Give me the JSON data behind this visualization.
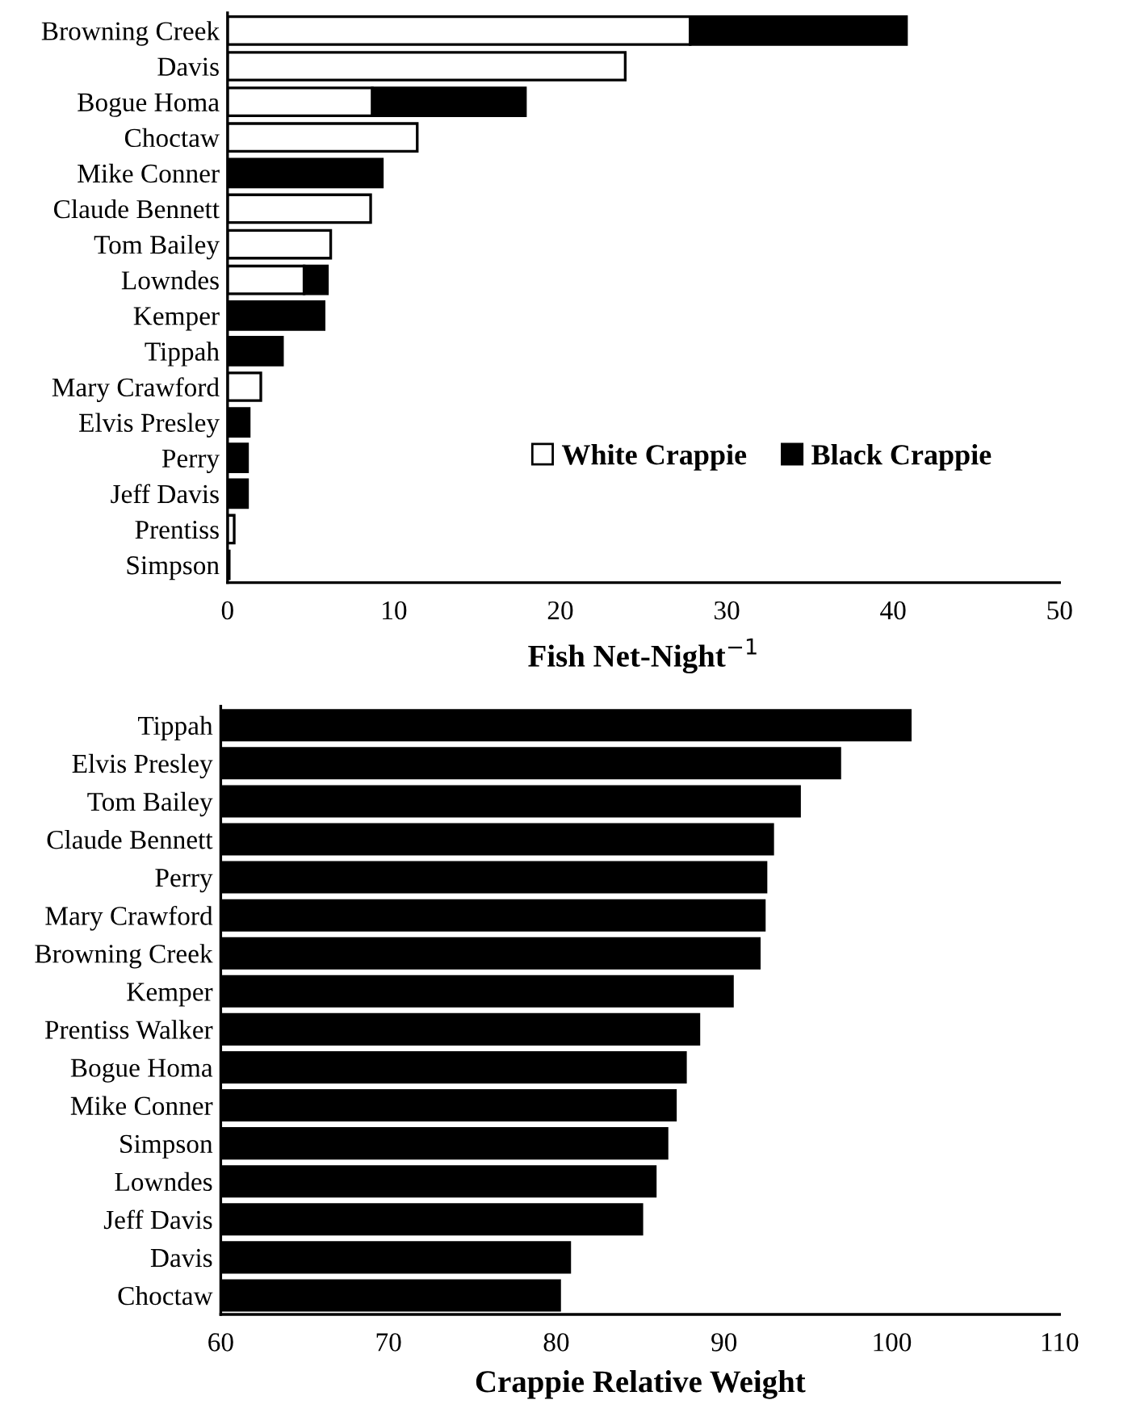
{
  "chart_data": [
    {
      "type": "bar",
      "orientation": "horizontal",
      "stacked": true,
      "xlabel": "Fish Net-Night$^{−1}$",
      "categories": [
        "Browning Creek",
        "Davis",
        "Bogue Homa",
        "Choctaw",
        "Mike Conner",
        "Claude Bennett",
        "Tom Bailey",
        "Lowndes",
        "Kemper",
        "Tippah",
        "Mary Crawford",
        "Elvis Presley",
        "Perry",
        "Jeff Davis",
        "Prentiss",
        "Simpson"
      ],
      "series": [
        {
          "name": "White Crappie",
          "color": "#ffffff",
          "values": [
            27.8,
            23.9,
            8.7,
            11.4,
            null,
            8.6,
            6.2,
            4.6,
            null,
            null,
            2.0,
            null,
            null,
            null,
            0.4,
            0.1
          ]
        },
        {
          "name": "Black Crappie",
          "color": "#000000",
          "values": [
            13.0,
            null,
            9.2,
            null,
            9.3,
            null,
            null,
            1.4,
            5.8,
            3.3,
            null,
            1.3,
            1.2,
            1.2,
            null,
            null
          ]
        }
      ],
      "xlim": [
        0,
        50
      ],
      "xticks": [
        0,
        10,
        20,
        30,
        40,
        50
      ],
      "legend": "right",
      "grid": false
    },
    {
      "type": "bar",
      "orientation": "horizontal",
      "xlabel": "Crappie Relative Weight",
      "categories": [
        "Tippah",
        "Elvis Presley",
        "Tom Bailey",
        "Claude Bennett",
        "Perry",
        "Mary Crawford",
        "Browning Creek",
        "Kemper",
        "Prentiss Walker",
        "Bogue Homa",
        "Mike Conner",
        "Simpson",
        "Lowndes",
        "Jeff Davis",
        "Davis",
        "Choctaw"
      ],
      "values": [
        101.1,
        96.9,
        94.5,
        92.9,
        92.5,
        92.4,
        92.1,
        90.5,
        88.5,
        87.7,
        87.1,
        86.6,
        85.9,
        85.1,
        80.8,
        80.2
      ],
      "color": "#000000",
      "xlim": [
        60,
        110
      ],
      "xticks": [
        60,
        70,
        80,
        90,
        100,
        110
      ],
      "grid": false
    }
  ]
}
